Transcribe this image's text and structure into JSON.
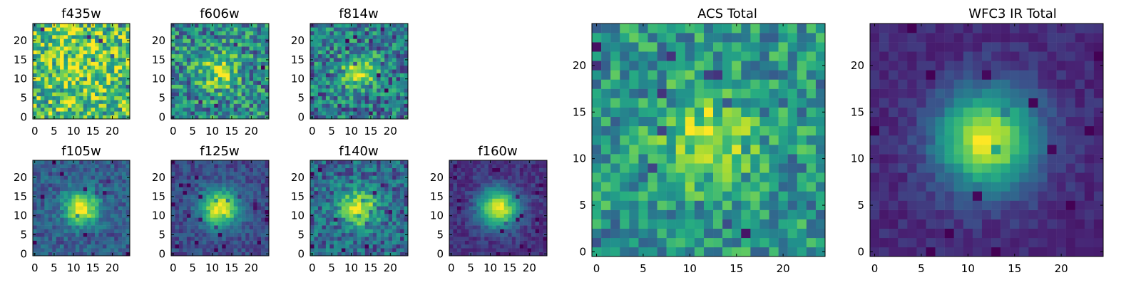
{
  "chart_data": [
    {
      "type": "heatmap",
      "title": "f435w",
      "x_range": [
        0,
        24
      ],
      "y_range": [
        0,
        24
      ],
      "grid_size": 25,
      "xticks": [
        "0",
        "5",
        "10",
        "15",
        "20"
      ],
      "yticks": [
        "0",
        "5",
        "10",
        "15",
        "20"
      ],
      "colormap": "viridis",
      "peak_center": [
        12,
        12
      ],
      "peak_width": 6,
      "peak_level": 0.2,
      "background_level": 0.68,
      "noise_amplitude": 0.34,
      "seed": 11
    },
    {
      "type": "heatmap",
      "title": "f606w",
      "x_range": [
        0,
        24
      ],
      "y_range": [
        0,
        24
      ],
      "grid_size": 25,
      "xticks": [
        "0",
        "5",
        "10",
        "15",
        "20"
      ],
      "yticks": [
        "0",
        "5",
        "10",
        "15",
        "20"
      ],
      "colormap": "viridis",
      "peak_center": [
        12,
        12
      ],
      "peak_width": 3.4,
      "peak_level": 0.38,
      "background_level": 0.48,
      "noise_amplitude": 0.3,
      "seed": 23
    },
    {
      "type": "heatmap",
      "title": "f814w",
      "x_range": [
        0,
        24
      ],
      "y_range": [
        0,
        24
      ],
      "grid_size": 25,
      "xticks": [
        "0",
        "5",
        "10",
        "15",
        "20"
      ],
      "yticks": [
        "0",
        "5",
        "10",
        "15",
        "20"
      ],
      "colormap": "viridis",
      "peak_center": [
        12,
        12
      ],
      "peak_width": 3,
      "peak_level": 0.5,
      "background_level": 0.42,
      "noise_amplitude": 0.28,
      "seed": 37
    },
    {
      "type": "heatmap",
      "title": "f105w",
      "x_range": [
        0,
        24
      ],
      "y_range": [
        0,
        24
      ],
      "grid_size": 25,
      "xticks": [
        "0",
        "5",
        "10",
        "15",
        "20"
      ],
      "yticks": [
        "0",
        "5",
        "10",
        "15",
        "20"
      ],
      "colormap": "viridis",
      "peak_center": [
        12,
        12
      ],
      "peak_width": 3,
      "peak_level": 0.72,
      "background_level": 0.3,
      "noise_amplitude": 0.13,
      "seed": 41
    },
    {
      "type": "heatmap",
      "title": "f125w",
      "x_range": [
        0,
        24
      ],
      "y_range": [
        0,
        24
      ],
      "grid_size": 25,
      "xticks": [
        "0",
        "5",
        "10",
        "15",
        "20"
      ],
      "yticks": [
        "0",
        "5",
        "10",
        "15",
        "20"
      ],
      "colormap": "viridis",
      "peak_center": [
        12,
        12
      ],
      "peak_width": 3.3,
      "peak_level": 0.78,
      "background_level": 0.24,
      "noise_amplitude": 0.1,
      "seed": 53
    },
    {
      "type": "heatmap",
      "title": "f140w",
      "x_range": [
        0,
        24
      ],
      "y_range": [
        0,
        24
      ],
      "grid_size": 25,
      "xticks": [
        "0",
        "5",
        "10",
        "15",
        "20"
      ],
      "yticks": [
        "0",
        "5",
        "10",
        "15",
        "20"
      ],
      "colormap": "viridis",
      "peak_center": [
        12,
        12
      ],
      "peak_width": 3.4,
      "peak_level": 0.62,
      "background_level": 0.34,
      "noise_amplitude": 0.2,
      "seed": 67
    },
    {
      "type": "heatmap",
      "title": "f160w",
      "x_range": [
        0,
        24
      ],
      "y_range": [
        0,
        24
      ],
      "grid_size": 25,
      "xticks": [
        "0",
        "5",
        "10",
        "15",
        "20"
      ],
      "yticks": [
        "0",
        "5",
        "10",
        "15",
        "20"
      ],
      "colormap": "viridis",
      "peak_center": [
        12,
        12
      ],
      "peak_width": 3.5,
      "peak_level": 0.84,
      "background_level": 0.16,
      "noise_amplitude": 0.08,
      "seed": 71
    },
    {
      "type": "heatmap",
      "title": "ACS Total",
      "x_range": [
        0,
        24
      ],
      "y_range": [
        0,
        24
      ],
      "grid_size": 25,
      "xticks": [
        "0",
        "5",
        "10",
        "15",
        "20"
      ],
      "yticks": [
        "0",
        "5",
        "10",
        "15",
        "20"
      ],
      "colormap": "viridis",
      "peak_center": [
        12,
        12
      ],
      "peak_width": 3.3,
      "peak_level": 0.38,
      "background_level": 0.52,
      "noise_amplitude": 0.24,
      "seed": 83
    },
    {
      "type": "heatmap",
      "title": "WFC3 IR Total",
      "x_range": [
        0,
        24
      ],
      "y_range": [
        0,
        24
      ],
      "grid_size": 25,
      "xticks": [
        "0",
        "5",
        "10",
        "15",
        "20"
      ],
      "yticks": [
        "0",
        "5",
        "10",
        "15",
        "20"
      ],
      "colormap": "viridis",
      "peak_center": [
        12,
        12
      ],
      "peak_width": 3.6,
      "peak_level": 0.84,
      "background_level": 0.14,
      "noise_amplitude": 0.06,
      "seed": 97
    }
  ]
}
